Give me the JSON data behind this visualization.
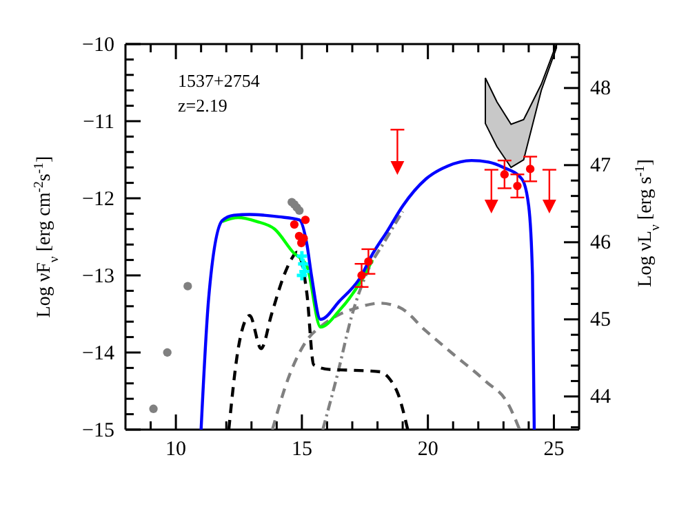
{
  "chart_data": {
    "type": "line",
    "ylabel": "Log νF$_{ν}$ [erg cm$^{-2}$s$^{-1}$]",
    "y2label": "Log νL$_{ν}$ [erg s$^{-1}$]",
    "annotations": [
      "1537+2754",
      "z=2.19"
    ],
    "xlim": [
      8,
      26
    ],
    "xticks": [
      {
        "value": 9,
        "label": null
      },
      10,
      {
        "value": 11,
        "label": null
      },
      {
        "value": 12,
        "label": null
      },
      {
        "value": 13,
        "label": null
      },
      {
        "value": 14,
        "label": null
      },
      15,
      {
        "value": 16,
        "label": null
      },
      {
        "value": 17,
        "label": null
      },
      {
        "value": 18,
        "label": null
      },
      {
        "value": 19,
        "label": null
      },
      20,
      {
        "value": 21,
        "label": null
      },
      {
        "value": 22,
        "label": null
      },
      {
        "value": 23,
        "label": null
      },
      {
        "value": 24,
        "label": null
      },
      25
    ],
    "ylim": [
      -15,
      -10
    ],
    "yticks": [
      -15,
      {
        "value": -14.8,
        "label": null
      },
      {
        "value": -14.6,
        "label": null
      },
      {
        "value": -14.4,
        "label": null
      },
      {
        "value": -14.2,
        "label": null
      },
      -14,
      {
        "value": -13.8,
        "label": null
      },
      {
        "value": -13.6,
        "label": null
      },
      {
        "value": -13.4,
        "label": null
      },
      {
        "value": -13.2,
        "label": null
      },
      -13,
      {
        "value": -12.8,
        "label": null
      },
      {
        "value": -12.6,
        "label": null
      },
      {
        "value": -12.4,
        "label": null
      },
      {
        "value": -12.2,
        "label": null
      },
      -12,
      {
        "value": -11.8,
        "label": null
      },
      {
        "value": -11.6,
        "label": null
      },
      {
        "value": -11.4,
        "label": null
      },
      {
        "value": -11.2,
        "label": null
      },
      -11,
      {
        "value": -10.8,
        "label": null
      },
      {
        "value": -10.6,
        "label": null
      },
      {
        "value": -10.4,
        "label": null
      },
      {
        "value": -10.2,
        "label": null
      },
      -10
    ],
    "y2lim": [
      43.57,
      48.57
    ],
    "y2ticks": [
      {
        "value": 43.6,
        "label": null
      },
      {
        "value": 43.8,
        "label": null
      },
      44,
      {
        "value": 44.2,
        "label": null
      },
      {
        "value": 44.4,
        "label": null
      },
      {
        "value": 44.6,
        "label": null
      },
      {
        "value": 44.8,
        "label": null
      },
      45,
      {
        "value": 45.2,
        "label": null
      },
      {
        "value": 45.4,
        "label": null
      },
      {
        "value": 45.6,
        "label": null
      },
      {
        "value": 45.8,
        "label": null
      },
      46,
      {
        "value": 46.2,
        "label": null
      },
      {
        "value": 46.4,
        "label": null
      },
      {
        "value": 46.6,
        "label": null
      },
      {
        "value": 46.8,
        "label": null
      },
      47,
      {
        "value": 47.2,
        "label": null
      },
      {
        "value": 47.4,
        "label": null
      },
      {
        "value": 47.6,
        "label": null
      },
      {
        "value": 47.8,
        "label": null
      },
      48,
      {
        "value": 48.2,
        "label": null
      },
      {
        "value": 48.4,
        "label": null
      }
    ],
    "grid": false,
    "series": [
      {
        "type": "area",
        "color": "#c8c8c8",
        "x": [
          22.28,
          22.74,
          23.3,
          23.8,
          24.5,
          25.1
        ],
        "values": [
          null,
          null,
          null,
          null,
          null,
          null
        ],
        "upper": [
          -10.44,
          -10.75,
          -11.04,
          -10.98,
          -10.52,
          -10.0
        ],
        "lower": [
          -11.03,
          -11.33,
          -11.6,
          -11.5,
          -10.6,
          -10.05
        ]
      },
      {
        "color": "#808080",
        "line_style": "dashed",
        "x": [
          13.83,
          14.5,
          15.2,
          15.8,
          16.47,
          17.2,
          18.1,
          18.9,
          19.92,
          21.0,
          22.28,
          23.19,
          23.64
        ],
        "values": [
          -15,
          -14.3,
          -13.84,
          -13.65,
          -13.51,
          -13.42,
          -13.36,
          -13.42,
          -13.72,
          -14.02,
          -14.37,
          -14.67,
          -15
        ]
      },
      {
        "color": "#808080",
        "line_style": "dotted",
        "x": [
          15.83,
          16.4,
          17.0,
          17.6,
          18.3,
          19.0
        ],
        "values": [
          -15,
          -14.3,
          -13.5,
          -12.95,
          -12.55,
          -12.17
        ]
      },
      {
        "color": "#000000",
        "line_style": "dashed",
        "x": [
          12.1,
          12.5,
          12.93,
          13.38,
          13.8,
          14.29,
          14.6,
          14.8,
          15.2,
          15.47,
          16.1,
          17.0,
          18.1,
          18.5,
          18.83,
          19.2
        ],
        "values": [
          -15,
          -13.9,
          -13.52,
          -13.95,
          -13.5,
          -13.0,
          -12.78,
          -12.7,
          -13.24,
          -14.16,
          -14.22,
          -14.23,
          -14.25,
          -14.35,
          -14.55,
          -15
        ]
      },
      {
        "color": "#00ff00",
        "line_style": "solid",
        "x": [
          11.84,
          12.47,
          13.2,
          13.92,
          14.65,
          15.2,
          15.74,
          16.5,
          17.37,
          17.8
        ],
        "values": [
          -12.3,
          -12.25,
          -12.3,
          -12.4,
          -12.7,
          -12.88,
          -13.67,
          -13.45,
          -13.06,
          -12.8
        ]
      },
      {
        "color": "#0000ff",
        "line_style": "solid",
        "x": [
          11.0,
          11.3,
          11.84,
          12.3,
          12.93,
          13.5,
          14.09,
          14.9,
          15.2,
          15.38,
          15.74,
          16.5,
          17.37,
          17.74,
          18.4,
          19.0,
          19.92,
          20.8,
          21.73,
          22.4,
          23.0,
          23.73,
          24.0,
          24.15,
          24.22
        ],
        "values": [
          -15,
          -13.3,
          -12.29,
          -12.22,
          -12.21,
          -12.22,
          -12.24,
          -12.28,
          -12.6,
          -13.0,
          -13.57,
          -13.33,
          -13.0,
          -12.76,
          -12.42,
          -12.1,
          -11.75,
          -11.58,
          -11.51,
          -11.53,
          -11.6,
          -11.75,
          -12.1,
          -13.0,
          -15
        ]
      },
      {
        "type": "scatter",
        "color": "#00ffff",
        "marker": "cross",
        "x": [
          15.0,
          15.05,
          15.1,
          15.0
        ],
        "values": [
          -12.75,
          -12.85,
          -12.95,
          -13.0
        ]
      },
      {
        "type": "scatter",
        "color": "#808080",
        "marker": "circle",
        "x": [
          9.11,
          9.66,
          10.47,
          14.6,
          14.7,
          14.8,
          14.9
        ],
        "values": [
          -14.73,
          -14.0,
          -13.14,
          -12.05,
          -12.08,
          -12.12,
          -12.16
        ]
      },
      {
        "type": "scatter",
        "color": "#ff0000",
        "marker": "circle",
        "x": [
          14.7,
          15.14,
          14.89,
          15.07,
          14.98,
          17.37,
          17.64,
          23.04,
          23.55,
          24.06
        ],
        "values": [
          -12.34,
          -12.28,
          -12.49,
          -12.52,
          -12.58,
          -13.0,
          -12.82,
          -11.69,
          -11.84,
          -11.62
        ],
        "errors": [
          null,
          null,
          null,
          null,
          null,
          0.15,
          0.16,
          0.18,
          0.15,
          0.16
        ]
      },
      {
        "type": "scatter",
        "color": "#ff0000",
        "marker": "triangle",
        "x": [
          18.79,
          22.52,
          24.82
        ],
        "values": [
          -11.6,
          -12.1,
          -12.1
        ],
        "errors": [
          [
            -11.6,
            -11.11
          ],
          [
            -12.1,
            -11.63
          ],
          [
            -12.1,
            -11.63
          ]
        ]
      }
    ]
  }
}
